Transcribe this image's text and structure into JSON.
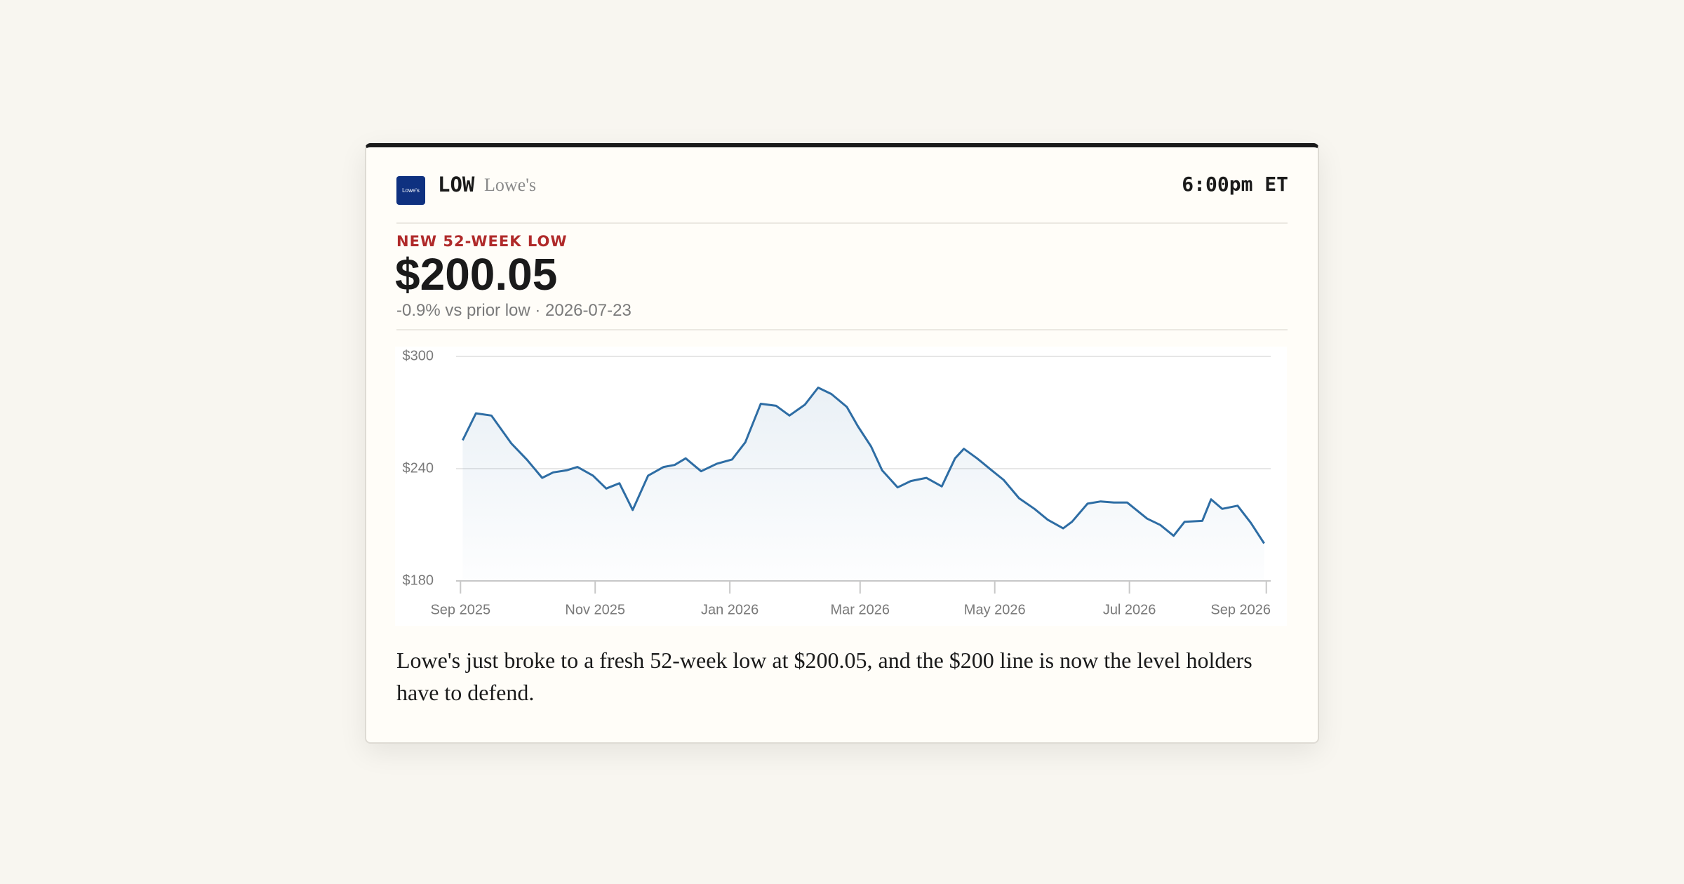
{
  "header": {
    "logo_text": "Lowe's",
    "ticker": "LOW",
    "name": "Lowe's",
    "time": "6:00pm ET"
  },
  "alert": {
    "label": "NEW 52-WEEK LOW",
    "price": "$200.05",
    "change": "-0.9% vs prior low · 2026-07-23"
  },
  "chart_data": {
    "type": "line",
    "color": "#2e6da4",
    "grid": true,
    "x": [
      "2025-09-02",
      "2025-09-08",
      "2025-09-15",
      "2025-09-24",
      "2025-10-01",
      "2025-10-08",
      "2025-10-13",
      "2025-10-19",
      "2025-10-24",
      "2025-10-31",
      "2025-11-06",
      "2025-11-12",
      "2025-11-18",
      "2025-11-25",
      "2025-12-02",
      "2025-12-07",
      "2025-12-12",
      "2025-12-19",
      "2025-12-26",
      "2026-01-02",
      "2026-01-08",
      "2026-01-15",
      "2026-01-22",
      "2026-01-28",
      "2026-02-04",
      "2026-02-10",
      "2026-02-16",
      "2026-02-23",
      "2026-02-28",
      "2026-03-06",
      "2026-03-11",
      "2026-03-18",
      "2026-03-24",
      "2026-03-31",
      "2026-04-07",
      "2026-04-13",
      "2026-04-17",
      "2026-04-23",
      "2026-04-29",
      "2026-05-05",
      "2026-05-12",
      "2026-05-19",
      "2026-05-25",
      "2026-06-01",
      "2026-06-05",
      "2026-06-12",
      "2026-06-18",
      "2026-06-24",
      "2026-06-30",
      "2026-07-09",
      "2026-07-15",
      "2026-07-21",
      "2026-07-26",
      "2026-08-03",
      "2026-08-07",
      "2026-08-12",
      "2026-08-19",
      "2026-08-25",
      "2026-08-31"
    ],
    "values": [
      255.2,
      269.6,
      268.4,
      253.5,
      244.9,
      235.1,
      238.0,
      239.1,
      240.9,
      236.3,
      229.4,
      232.2,
      217.9,
      236.3,
      240.9,
      242.0,
      245.5,
      238.6,
      242.6,
      244.9,
      254.1,
      274.7,
      273.6,
      268.4,
      274.2,
      283.3,
      279.9,
      273.0,
      262.7,
      251.8,
      239.1,
      230.0,
      233.4,
      235.1,
      230.5,
      245.5,
      250.6,
      245.5,
      239.7,
      234.0,
      224.2,
      218.5,
      212.7,
      208.1,
      211.6,
      221.3,
      222.5,
      221.9,
      221.9,
      213.3,
      209.9,
      204.1,
      211.6,
      212.1,
      223.6,
      218.5,
      220.2,
      211.0,
      200.05
    ],
    "xlim": [
      "2025-08-30",
      "2026-09-03"
    ],
    "xticks": [
      {
        "value": "2025-09-01",
        "label": "Sep 2025"
      },
      {
        "value": "2025-11-01",
        "label": "Nov 2025"
      },
      {
        "value": "2026-01-01",
        "label": "Jan 2026"
      },
      {
        "value": "2026-03-01",
        "label": "Mar 2026"
      },
      {
        "value": "2026-05-01",
        "label": "May 2026"
      },
      {
        "value": "2026-07-01",
        "label": "Jul 2026"
      },
      {
        "value": "2026-09-01",
        "label": "Sep 2026"
      }
    ],
    "ylim": [
      180,
      300
    ],
    "yticks": [
      {
        "value": 180,
        "label": "$180"
      },
      {
        "value": 240,
        "label": "$240"
      },
      {
        "value": 300,
        "label": "$300"
      }
    ]
  },
  "caption": "Lowe's just broke to a fresh 52-week low at $200.05, and the $200 line is now the level holders have to defend."
}
